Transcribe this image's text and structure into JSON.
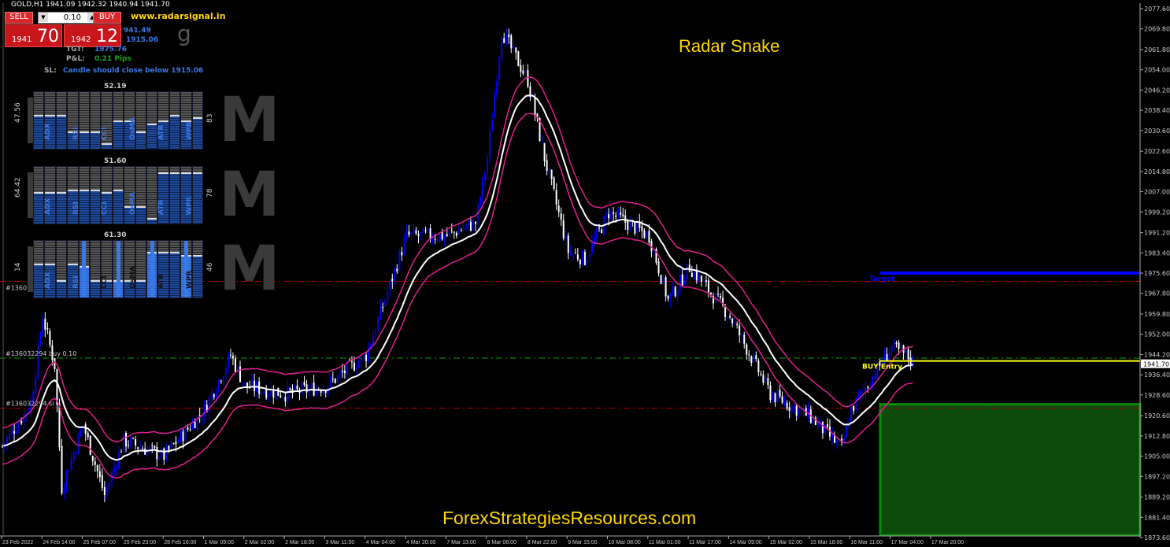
{
  "header": {
    "symbol_line": "GOLD,H1  1941.09 1942.32 1940.94 1941.70",
    "site": "www.radarsignal.in",
    "title": "Radar Snake",
    "footer": "ForexStrategiesResources.com",
    "glyph": "g"
  },
  "trade_panel": {
    "sell_label": "SELL",
    "buy_label": "BUY",
    "lot": "0.10",
    "sell_big": "1941",
    "sell_small": "70",
    "buy_big": "1942",
    "buy_small": "12"
  },
  "info": {
    "entry_partial": "941.49",
    "sl_partial": "1915.06",
    "tgt_label": "TGT:",
    "tgt_value": "1975.76",
    "pl_label": "P&L:",
    "pl_value": "0.21  Pips",
    "sl_label": "SL:",
    "sl_text": "Candle should close below 1915.06"
  },
  "indicators": {
    "labels": [
      "ADX",
      "RSI",
      "CCI",
      "OsMA",
      "ATR",
      "WPR"
    ],
    "panels": [
      {
        "top": "52.19",
        "left": "47.56",
        "right": "83",
        "levels": [
          0.6,
          0.6,
          0.6,
          0.3,
          0.3,
          0.3,
          0.1,
          0.5,
          0.5,
          0.3,
          0.45,
          0.5,
          0.6,
          0.5,
          0.55
        ],
        "highlight": []
      },
      {
        "top": "51.60",
        "left": "64.42",
        "right": "78",
        "levels": [
          0.55,
          0.55,
          0.55,
          0.6,
          0.6,
          0.6,
          0.55,
          0.6,
          0.3,
          0.3,
          0.1,
          0.9,
          0.9,
          0.9,
          0.9
        ],
        "highlight": []
      },
      {
        "top": "61.30",
        "left": "14",
        "right": "46",
        "levels": [
          0.6,
          0.6,
          0.3,
          0.6,
          0.55,
          0.3,
          0.3,
          0.3,
          0.3,
          0.3,
          0.8,
          0.8,
          0.8,
          0.75,
          0.75
        ],
        "highlight": [
          4,
          7,
          10,
          13
        ]
      }
    ]
  },
  "chart_data": {
    "type": "candlestick",
    "symbol": "GOLD",
    "timeframe": "H1",
    "y_ticks": [
      2077.6,
      2069.8,
      2061.8,
      2054.0,
      2046.2,
      2038.4,
      2030.6,
      2022.6,
      2014.8,
      2007.0,
      1999.2,
      1991.2,
      1983.4,
      1975.6,
      1967.8,
      1959.8,
      1952.0,
      1944.2,
      1936.4,
      1928.6,
      1920.6,
      1912.8,
      1905.0,
      1897.2,
      1889.2,
      1881.4,
      1873.6
    ],
    "ylim": [
      1873.6,
      2077.6
    ],
    "x_ticks": [
      "23 Feb 2022",
      "24 Feb 14:00",
      "25 Feb 07:00",
      "25 Feb 23:00",
      "28 Feb 16:00",
      "1 Mar 09:00",
      "2 Mar 02:00",
      "2 Mar 18:00",
      "3 Mar 11:00",
      "4 Mar 04:00",
      "4 Mar 20:00",
      "7 Mar 13:00",
      "8 Mar 06:00",
      "8 Mar 22:00",
      "9 Mar 15:00",
      "10 Mar 08:00",
      "11 Mar 01:00",
      "11 Mar 17:00",
      "14 Mar 09:00",
      "15 Mar 02:00",
      "15 Mar 18:00",
      "16 Mar 11:00",
      "17 Mar 04:00",
      "17 Mar 20:00"
    ],
    "approx_close_path": [
      [
        0,
        1909
      ],
      [
        12,
        1925
      ],
      [
        17,
        1959
      ],
      [
        22,
        1940
      ],
      [
        25,
        1893
      ],
      [
        34,
        1917
      ],
      [
        43,
        1890
      ],
      [
        51,
        1911
      ],
      [
        68,
        1905
      ],
      [
        85,
        1923
      ],
      [
        96,
        1944
      ],
      [
        102,
        1932
      ],
      [
        119,
        1929
      ],
      [
        136,
        1932
      ],
      [
        153,
        1944
      ],
      [
        170,
        1990
      ],
      [
        187,
        1990
      ],
      [
        199,
        1995
      ],
      [
        204,
        2020
      ],
      [
        210,
        2069
      ],
      [
        221,
        2050
      ],
      [
        228,
        2020
      ],
      [
        238,
        1984
      ],
      [
        245,
        1981
      ],
      [
        255,
        1999
      ],
      [
        272,
        1990
      ],
      [
        280,
        1965
      ],
      [
        289,
        1978
      ],
      [
        306,
        1959
      ],
      [
        323,
        1929
      ],
      [
        340,
        1920
      ],
      [
        353,
        1908
      ],
      [
        357,
        1923
      ],
      [
        374,
        1947
      ],
      [
        383,
        1942
      ]
    ],
    "current_price": "1941.70",
    "levels": {
      "target": 1975.6,
      "target_label": "Target",
      "tp_line": 1972.4,
      "entry_line": 1942.8,
      "sl_line": 1923.5,
      "buy_entry": 1941.7,
      "buy_entry_label": "BUY Entry",
      "tp_order_label": "#1360",
      "buy_order_label": "#136032294 buy 0.10",
      "sl_order_label": "#136032294 sl"
    },
    "colors": {
      "bull": "#0000ff",
      "bear": "#ffffff",
      "ma": "#ffffff",
      "bands": "#e0208f",
      "target": "#0000ff",
      "entry": "#ffff00",
      "stop_zone": "#0b4a0b",
      "dashed_red": "#c00000",
      "dashed_green": "#00a000"
    }
  }
}
